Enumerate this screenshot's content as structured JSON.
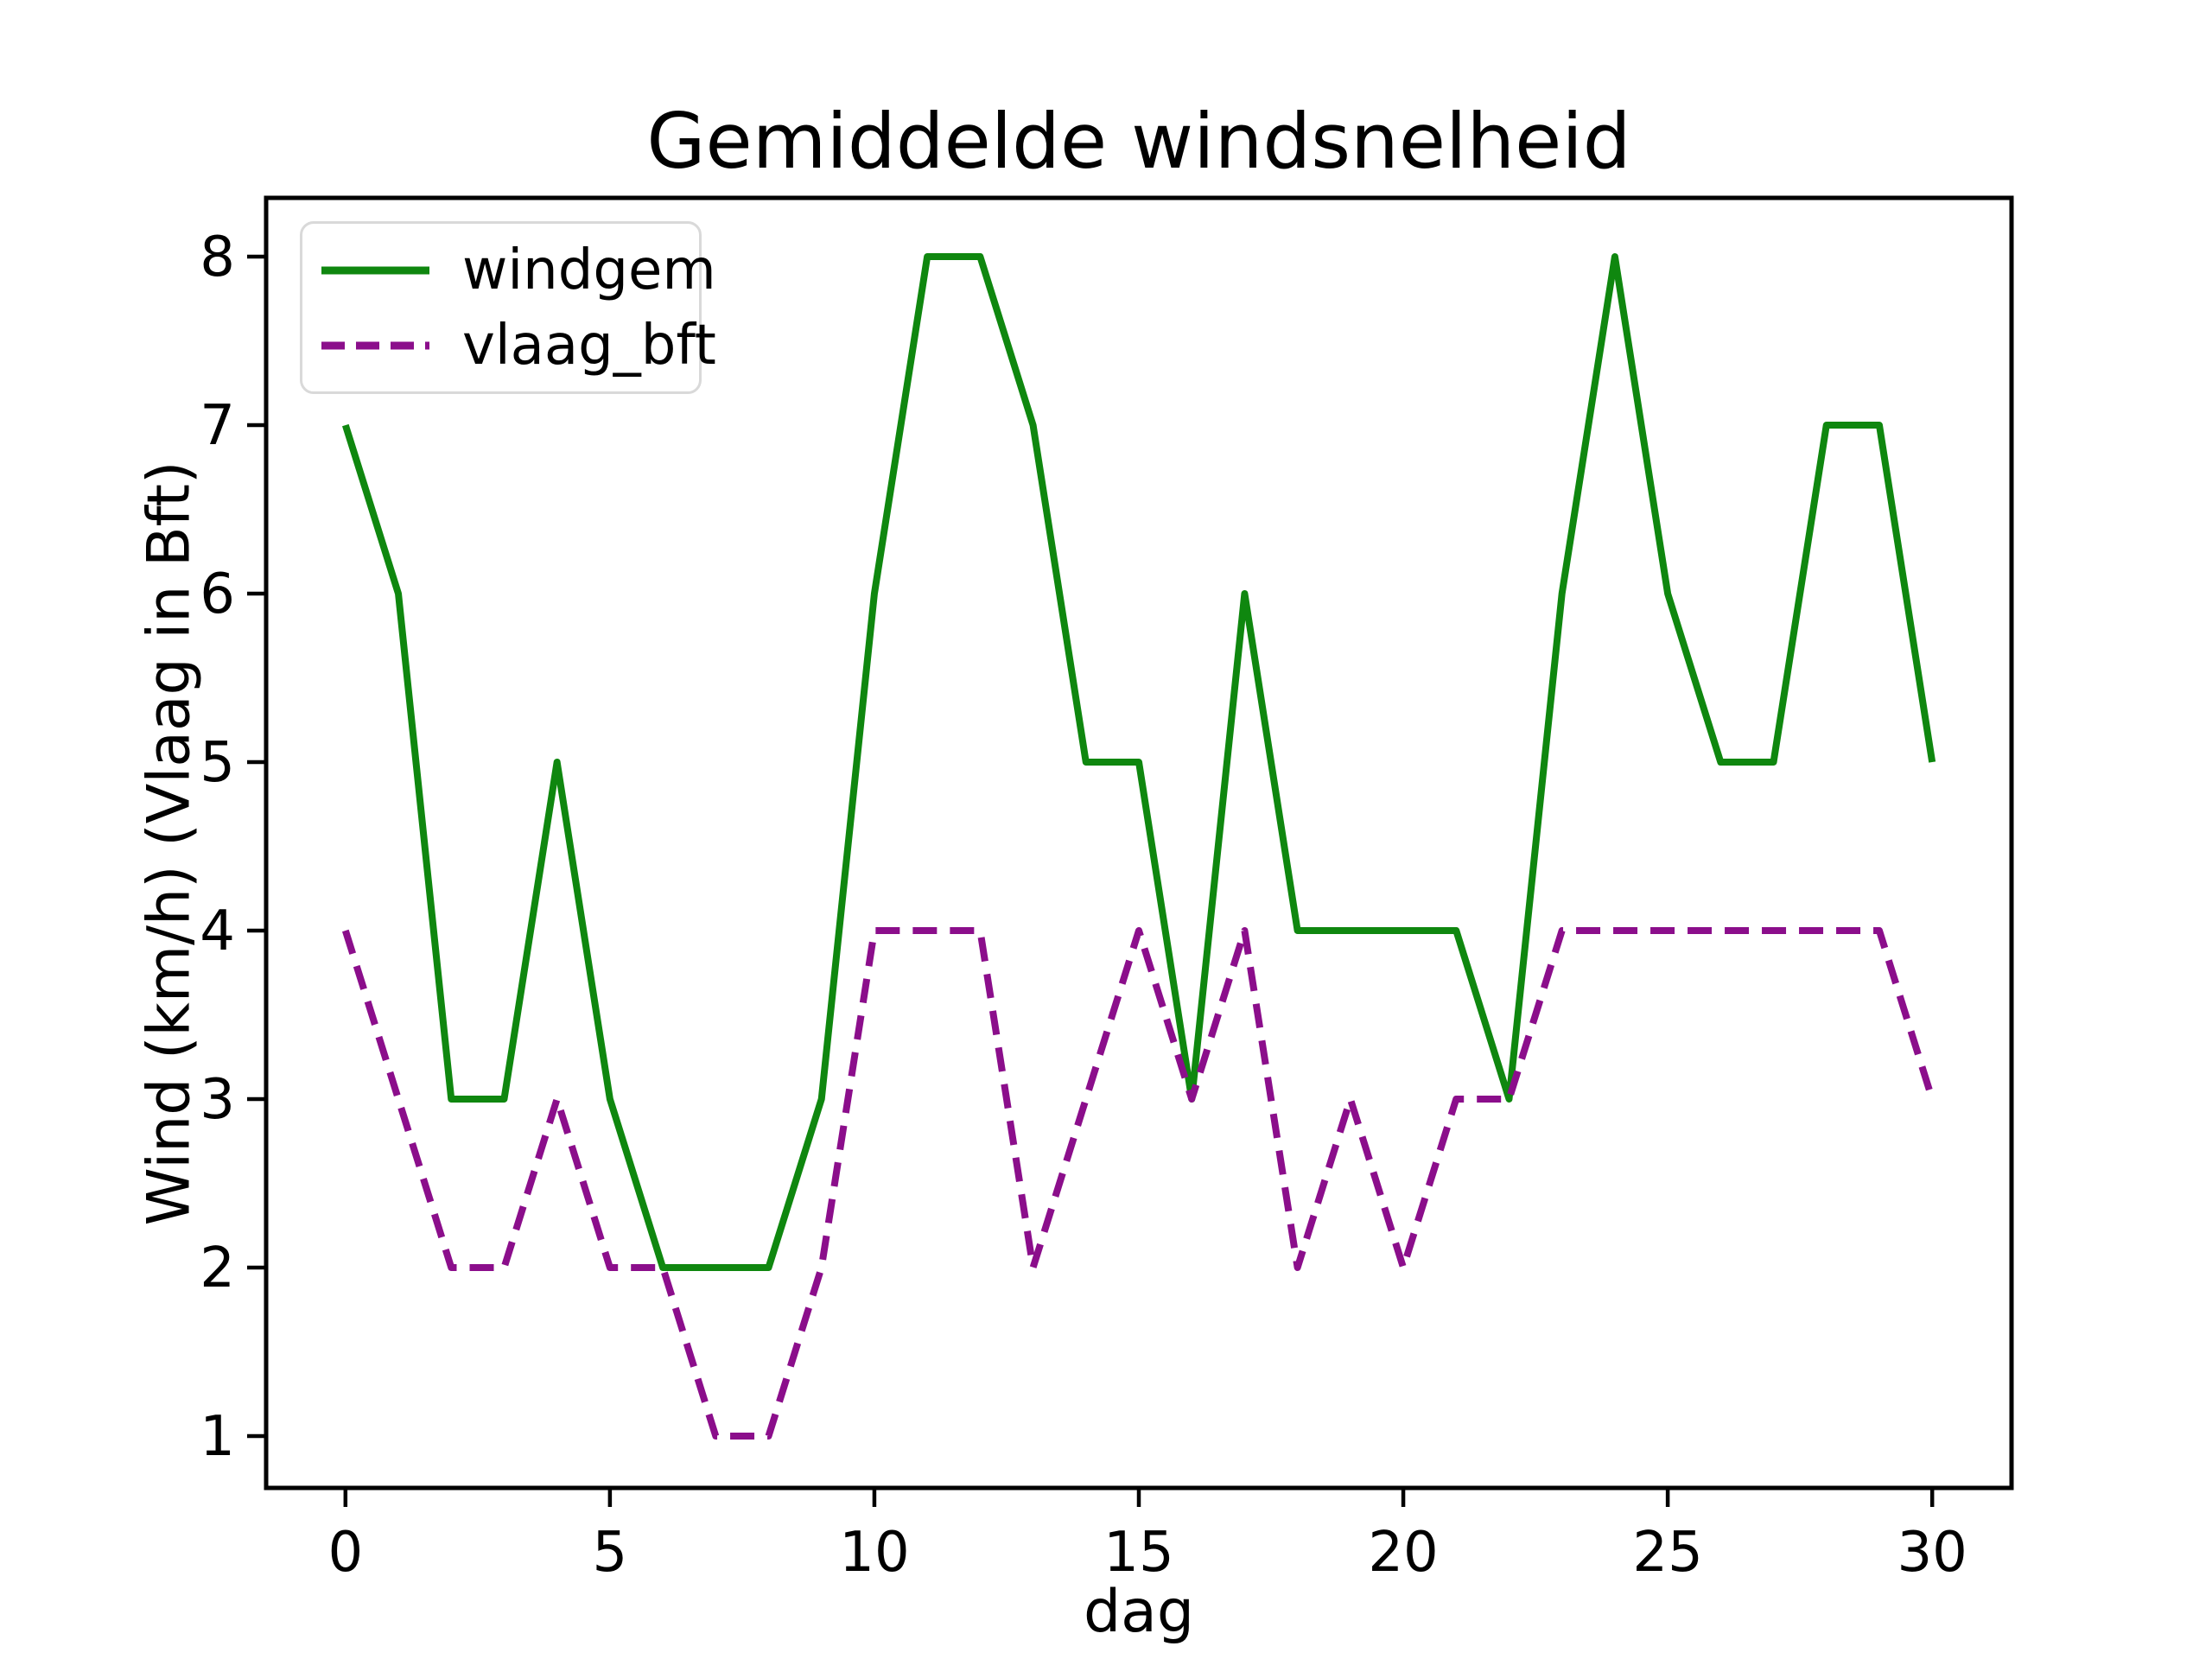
{
  "title": "Gemiddelde windsnelheid",
  "colors": {
    "windgem": "#0f870f",
    "vlaag_bft": "#8b0e8b",
    "axes": "#000000",
    "legend_border": "#d9d9d9"
  },
  "chart_data": {
    "type": "line",
    "title": "Gemiddelde windsnelheid",
    "xlabel": "dag",
    "ylabel": "Wind (km/h) (Vlaag in Bft)",
    "x": [
      0,
      1,
      2,
      3,
      4,
      5,
      6,
      7,
      8,
      9,
      10,
      11,
      12,
      13,
      14,
      15,
      16,
      17,
      18,
      19,
      20,
      21,
      22,
      23,
      24,
      25,
      26,
      27,
      28,
      29,
      30
    ],
    "series": [
      {
        "name": "windgem",
        "color": "#0f870f",
        "style": "solid",
        "values": [
          7,
          6,
          3,
          3,
          5,
          3,
          2,
          2,
          2,
          3,
          6,
          8,
          8,
          7,
          5,
          5,
          3,
          6,
          4,
          4,
          4,
          4,
          3,
          6,
          8,
          6,
          5,
          5,
          7,
          7,
          5
        ]
      },
      {
        "name": "vlaag_bft",
        "color": "#8b0e8b",
        "style": "dashed",
        "values": [
          4,
          3,
          2,
          2,
          3,
          2,
          2,
          1,
          1,
          2,
          4,
          4,
          4,
          2,
          3,
          4,
          3,
          4,
          2,
          3,
          2,
          3,
          3,
          4,
          4,
          4,
          4,
          4,
          4,
          4,
          3
        ]
      }
    ],
    "xlim": [
      -1.5,
      31.5
    ],
    "ylim": [
      0.692,
      8.349
    ],
    "x_ticks": [
      0,
      5,
      10,
      15,
      20,
      25,
      30
    ],
    "y_ticks": [
      1,
      2,
      3,
      4,
      5,
      6,
      7,
      8
    ],
    "grid": false,
    "legend_position": "upper left"
  }
}
